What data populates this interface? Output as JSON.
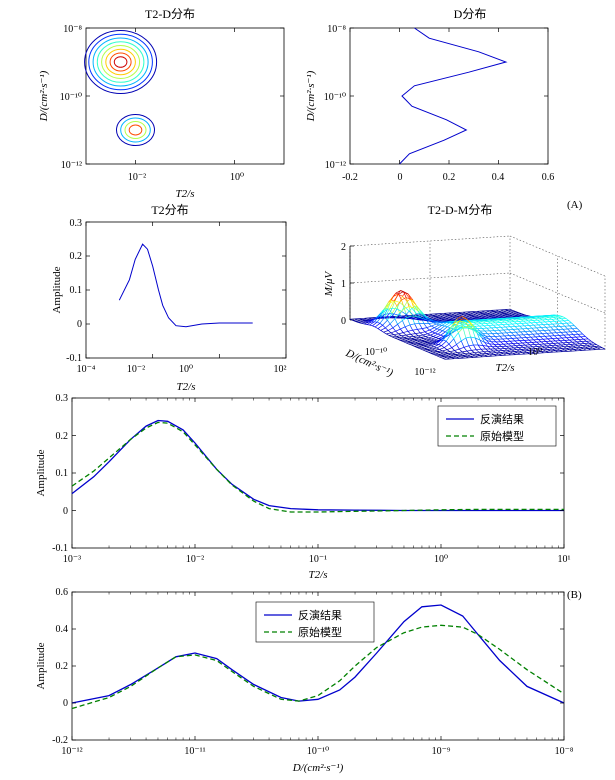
{
  "panel_labels": [
    "(A)",
    "(B)"
  ],
  "chart_data": [
    {
      "id": "t2d_map",
      "type": "contour",
      "title": "T2-D分布",
      "xlabel": "T2/s",
      "ylabel": "D/(cm²·s⁻¹)",
      "xscale": "log",
      "yscale": "log",
      "xlim": [
        0.001,
        10
      ],
      "ylim": [
        1e-12,
        1e-08
      ],
      "xticks": [
        "10⁻²",
        "10⁰"
      ],
      "yticks": [
        "10⁻⁸",
        "10⁻¹⁰",
        "10⁻¹²"
      ],
      "peaks": [
        {
          "t2": 0.005,
          "d": 1e-09,
          "rings": 8
        },
        {
          "t2": 0.01,
          "d": 1e-11,
          "rings": 4
        }
      ]
    },
    {
      "id": "d_dist_small",
      "type": "line",
      "title": "D分布",
      "ylabel": "D/(cm²·s⁻¹)",
      "xlim": [
        -0.2,
        0.6
      ],
      "ylim": [
        1e-12,
        1e-08
      ],
      "yscale": "log",
      "xticks": [
        "-0.2",
        "0",
        "0.2",
        "0.4",
        "0.6"
      ],
      "yticks": [
        "10⁻⁸",
        "10⁻¹⁰",
        "10⁻¹²"
      ],
      "series": [
        {
          "d": [
            1e-12,
            2e-12,
            5e-12,
            1e-11,
            2e-11,
            5e-11,
            1e-10,
            2e-10,
            5e-10,
            1e-09,
            2e-09,
            5e-09,
            1e-08
          ],
          "a": [
            0,
            0.04,
            0.18,
            0.27,
            0.19,
            0.05,
            0.01,
            0.06,
            0.28,
            0.43,
            0.32,
            0.12,
            0.06
          ]
        }
      ]
    },
    {
      "id": "t2_dist_small",
      "type": "line",
      "title": "T2分布",
      "xlabel": "T2/s",
      "ylabel": "Amplitude",
      "xscale": "log",
      "xlim": [
        0.0001,
        100
      ],
      "ylim": [
        -0.1,
        0.3
      ],
      "xticks": [
        "10⁻⁴",
        "10⁻²",
        "10⁰",
        "10²"
      ],
      "yticks": [
        "-0.1",
        "0",
        "0.1",
        "0.2",
        "0.3"
      ],
      "series": [
        {
          "x": [
            0.001,
            0.002,
            0.003,
            0.005,
            0.007,
            0.01,
            0.015,
            0.02,
            0.03,
            0.05,
            0.1,
            0.3,
            1,
            3,
            10
          ],
          "y": [
            0.07,
            0.13,
            0.19,
            0.235,
            0.22,
            0.17,
            0.1,
            0.055,
            0.018,
            -0.005,
            -0.008,
            0.0,
            0.003,
            0.003,
            0.003
          ]
        }
      ]
    },
    {
      "id": "t2dm_3d",
      "type": "surface",
      "title": "T2-D-M分布",
      "zlabel": "M/μV",
      "xlabel": "D/(cm²·s⁻¹)",
      "ylabel": "T2/s",
      "zlim": [
        0,
        2
      ],
      "zticks": [
        "0",
        "1",
        "2"
      ],
      "xticks": [
        "10⁻¹⁰",
        "10⁻¹²"
      ],
      "yticks": [
        "10⁰"
      ],
      "peaks": [
        {
          "t2": 0.005,
          "d": 1e-09,
          "m": 1.0
        },
        {
          "t2": 0.01,
          "d": 1e-11,
          "m": 0.75
        }
      ]
    },
    {
      "id": "t2_compare",
      "type": "line",
      "xlabel": "T2/s",
      "ylabel": "Amplitude",
      "xscale": "log",
      "xlim": [
        0.001,
        10
      ],
      "ylim": [
        -0.1,
        0.3
      ],
      "xticks": [
        "10⁻³",
        "10⁻²",
        "10⁻¹",
        "10⁰",
        "10¹"
      ],
      "yticks": [
        "-0.1",
        "0",
        "0.1",
        "0.2",
        "0.3"
      ],
      "legend": "top-right",
      "series": [
        {
          "name": "反演结果",
          "style": "solid",
          "color": "#0000cc",
          "x": [
            0.001,
            0.0015,
            0.002,
            0.003,
            0.004,
            0.005,
            0.006,
            0.008,
            0.01,
            0.015,
            0.02,
            0.03,
            0.04,
            0.06,
            0.1,
            0.2,
            0.5,
            1,
            2,
            5,
            10
          ],
          "y": [
            0.045,
            0.09,
            0.13,
            0.19,
            0.225,
            0.24,
            0.238,
            0.215,
            0.18,
            0.11,
            0.07,
            0.03,
            0.013,
            0.005,
            0.002,
            0.001,
            0.0,
            0.0,
            0.0,
            0.0,
            0.0
          ]
        },
        {
          "name": "原始模型",
          "style": "dashed",
          "color": "#008000",
          "x": [
            0.001,
            0.0015,
            0.002,
            0.003,
            0.004,
            0.005,
            0.006,
            0.008,
            0.01,
            0.015,
            0.02,
            0.03,
            0.04,
            0.06,
            0.1,
            0.2,
            0.5,
            1,
            2,
            5,
            10
          ],
          "y": [
            0.065,
            0.105,
            0.14,
            0.19,
            0.22,
            0.235,
            0.233,
            0.21,
            0.175,
            0.11,
            0.068,
            0.025,
            0.005,
            -0.004,
            -0.004,
            -0.002,
            0.0,
            0.002,
            0.003,
            0.003,
            0.003
          ]
        }
      ]
    },
    {
      "id": "d_compare",
      "type": "line",
      "xlabel": "D/(cm²·s⁻¹)",
      "ylabel": "Amplitude",
      "xscale": "log",
      "xlim": [
        1e-12,
        1e-08
      ],
      "ylim": [
        -0.2,
        0.6
      ],
      "xticks": [
        "10⁻¹²",
        "10⁻¹¹",
        "10⁻¹⁰",
        "10⁻⁹",
        "10⁻⁸"
      ],
      "yticks": [
        "-0.2",
        "0",
        "0.2",
        "0.4",
        "0.6"
      ],
      "legend": "top-center",
      "series": [
        {
          "name": "反演结果",
          "style": "solid",
          "color": "#0000cc",
          "x": [
            1e-12,
            2e-12,
            3e-12,
            5e-12,
            7e-12,
            1e-11,
            1.5e-11,
            2e-11,
            3e-11,
            5e-11,
            7e-11,
            1e-10,
            1.5e-10,
            2e-10,
            3e-10,
            5e-10,
            7e-10,
            1e-09,
            1.5e-09,
            2e-09,
            3e-09,
            5e-09,
            1e-08
          ],
          "y": [
            0.0,
            0.04,
            0.1,
            0.19,
            0.25,
            0.27,
            0.24,
            0.18,
            0.1,
            0.03,
            0.01,
            0.02,
            0.07,
            0.14,
            0.27,
            0.44,
            0.52,
            0.53,
            0.47,
            0.37,
            0.23,
            0.09,
            0.0
          ]
        },
        {
          "name": "原始模型",
          "style": "dashed",
          "color": "#008000",
          "x": [
            1e-12,
            2e-12,
            3e-12,
            5e-12,
            7e-12,
            1e-11,
            1.5e-11,
            2e-11,
            3e-11,
            5e-11,
            7e-11,
            1e-10,
            1.5e-10,
            2e-10,
            3e-10,
            5e-10,
            7e-10,
            1e-09,
            1.5e-09,
            2e-09,
            3e-09,
            5e-09,
            1e-08
          ],
          "y": [
            -0.03,
            0.03,
            0.09,
            0.19,
            0.25,
            0.26,
            0.23,
            0.17,
            0.09,
            0.02,
            0.01,
            0.04,
            0.12,
            0.2,
            0.3,
            0.38,
            0.41,
            0.42,
            0.41,
            0.37,
            0.29,
            0.18,
            0.05
          ]
        }
      ]
    }
  ]
}
